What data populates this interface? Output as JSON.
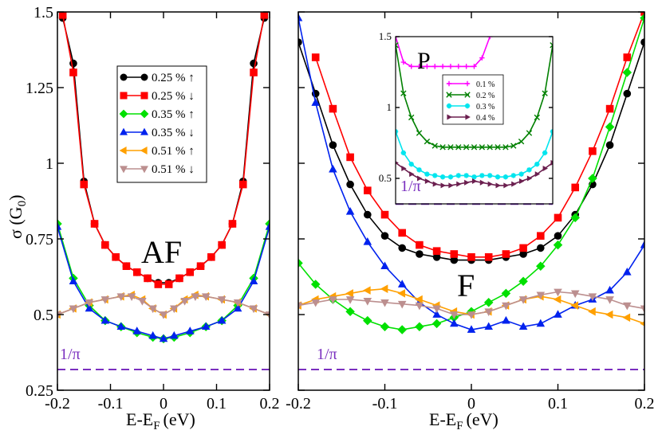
{
  "chart_data": [
    {
      "id": "af",
      "type": "line",
      "label": "AF",
      "xlabel": "E-E",
      "xlabel_sub": "F",
      "xlabel_unit": "(eV)",
      "ylabel": "σ (G",
      "ylabel_sub": "0",
      "ylabel_close": ")",
      "xlim": [
        -0.2,
        0.2
      ],
      "ylim": [
        0.25,
        1.5
      ],
      "xticks": [
        -0.2,
        -0.1,
        0,
        0.1,
        0.2
      ],
      "xtick_labels": [
        "-0.2",
        "-0.1",
        "0",
        "0.1",
        "0.2"
      ],
      "yticks": [
        0.25,
        0.5,
        0.75,
        1,
        1.25,
        1.5
      ],
      "ytick_labels": [
        "0.25",
        "0.5",
        "0.75",
        "1",
        "1.25",
        "1.5"
      ],
      "reference_line": {
        "label": "1/π",
        "value": 0.3183,
        "color": "#7a2fbf"
      },
      "legend": {
        "position": "top-center"
      },
      "series": [
        {
          "name": "0.25 % ↑",
          "color": "#000000",
          "marker": "circle",
          "x": [
            -0.19,
            -0.17,
            -0.15,
            -0.13,
            -0.11,
            -0.09,
            -0.07,
            -0.05,
            -0.03,
            -0.01,
            0.01,
            0.03,
            0.05,
            0.07,
            0.09,
            0.11,
            0.13,
            0.15,
            0.17,
            0.19
          ],
          "y": [
            1.48,
            1.33,
            0.94,
            0.8,
            0.73,
            0.69,
            0.66,
            0.64,
            0.62,
            0.605,
            0.605,
            0.62,
            0.64,
            0.66,
            0.69,
            0.73,
            0.8,
            0.94,
            1.33,
            1.48
          ]
        },
        {
          "name": "0.25 % ↓",
          "color": "#ff0000",
          "marker": "square",
          "x": [
            -0.19,
            -0.17,
            -0.15,
            -0.13,
            -0.11,
            -0.09,
            -0.07,
            -0.05,
            -0.03,
            -0.01,
            0.01,
            0.03,
            0.05,
            0.07,
            0.09,
            0.11,
            0.13,
            0.15,
            0.17,
            0.19
          ],
          "y": [
            1.49,
            1.3,
            0.93,
            0.8,
            0.73,
            0.69,
            0.66,
            0.64,
            0.62,
            0.6,
            0.6,
            0.62,
            0.64,
            0.66,
            0.69,
            0.73,
            0.8,
            0.93,
            1.3,
            1.49
          ]
        },
        {
          "name": "0.35 % ↑",
          "color": "#00e000",
          "marker": "diamond",
          "x": [
            -0.2,
            -0.17,
            -0.14,
            -0.11,
            -0.08,
            -0.05,
            -0.02,
            0.0,
            0.02,
            0.05,
            0.08,
            0.11,
            0.14,
            0.17,
            0.2
          ],
          "y": [
            0.8,
            0.62,
            0.53,
            0.48,
            0.46,
            0.44,
            0.425,
            0.42,
            0.425,
            0.44,
            0.46,
            0.48,
            0.53,
            0.62,
            0.8
          ]
        },
        {
          "name": "0.35 % ↓",
          "color": "#0022ee",
          "marker": "triangle-up",
          "x": [
            -0.2,
            -0.17,
            -0.14,
            -0.11,
            -0.08,
            -0.05,
            -0.02,
            0.0,
            0.02,
            0.05,
            0.08,
            0.11,
            0.14,
            0.17,
            0.2
          ],
          "y": [
            0.79,
            0.61,
            0.52,
            0.48,
            0.46,
            0.445,
            0.43,
            0.42,
            0.43,
            0.445,
            0.46,
            0.48,
            0.52,
            0.61,
            0.79
          ]
        },
        {
          "name": "0.51 % ↑",
          "color": "#ffa000",
          "marker": "triangle-left",
          "x": [
            -0.2,
            -0.17,
            -0.14,
            -0.11,
            -0.08,
            -0.06,
            -0.04,
            -0.02,
            0.0,
            0.02,
            0.04,
            0.06,
            0.08,
            0.11,
            0.14,
            0.17,
            0.2
          ],
          "y": [
            0.5,
            0.52,
            0.54,
            0.55,
            0.56,
            0.565,
            0.55,
            0.52,
            0.5,
            0.52,
            0.55,
            0.565,
            0.56,
            0.55,
            0.54,
            0.52,
            0.5
          ]
        },
        {
          "name": "0.51 % ↓",
          "color": "#bc8f8f",
          "marker": "triangle-down",
          "x": [
            -0.2,
            -0.17,
            -0.14,
            -0.11,
            -0.08,
            -0.06,
            -0.04,
            -0.02,
            0.0,
            0.02,
            0.04,
            0.06,
            0.08,
            0.11,
            0.14,
            0.17,
            0.2
          ],
          "y": [
            0.5,
            0.52,
            0.54,
            0.55,
            0.56,
            0.56,
            0.545,
            0.52,
            0.5,
            0.52,
            0.545,
            0.56,
            0.56,
            0.55,
            0.54,
            0.52,
            0.5
          ]
        }
      ]
    },
    {
      "id": "f",
      "type": "line",
      "label": "F",
      "xlabel": "E-E",
      "xlabel_sub": "F",
      "xlabel_unit": "(eV)",
      "xlim": [
        -0.2,
        0.2
      ],
      "ylim": [
        0.25,
        1.5
      ],
      "xticks": [
        -0.2,
        -0.1,
        0,
        0.1,
        0.2
      ],
      "xtick_labels": [
        "-0.2",
        "-0.1",
        "0",
        "0.1",
        "0.2"
      ],
      "yticks": [
        0.25,
        0.5,
        0.75,
        1,
        1.25,
        1.5
      ],
      "reference_line": {
        "label": "1/π",
        "value": 0.3183,
        "color": "#7a2fbf"
      },
      "series": [
        {
          "name": "0.25 % ↑",
          "color": "#000000",
          "marker": "circle",
          "x": [
            -0.2,
            -0.18,
            -0.16,
            -0.14,
            -0.12,
            -0.1,
            -0.08,
            -0.06,
            -0.04,
            -0.02,
            0.0,
            0.02,
            0.04,
            0.06,
            0.08,
            0.1,
            0.12,
            0.14,
            0.16,
            0.18,
            0.2
          ],
          "y": [
            1.4,
            1.23,
            1.06,
            0.93,
            0.83,
            0.76,
            0.72,
            0.7,
            0.69,
            0.68,
            0.68,
            0.68,
            0.69,
            0.7,
            0.72,
            0.76,
            0.83,
            0.93,
            1.06,
            1.23,
            1.4
          ]
        },
        {
          "name": "0.25 % ↓",
          "color": "#ff0000",
          "marker": "square",
          "x": [
            -0.18,
            -0.16,
            -0.14,
            -0.12,
            -0.1,
            -0.08,
            -0.06,
            -0.04,
            -0.02,
            0.0,
            0.02,
            0.04,
            0.06,
            0.08,
            0.1,
            0.12,
            0.14,
            0.16,
            0.18,
            0.2
          ],
          "y": [
            1.35,
            1.18,
            1.02,
            0.91,
            0.83,
            0.77,
            0.73,
            0.71,
            0.7,
            0.69,
            0.69,
            0.7,
            0.72,
            0.76,
            0.82,
            0.92,
            1.04,
            1.18,
            1.35,
            1.5
          ]
        },
        {
          "name": "0.35 % ↑",
          "color": "#00e000",
          "marker": "diamond",
          "x": [
            -0.2,
            -0.18,
            -0.16,
            -0.14,
            -0.12,
            -0.1,
            -0.08,
            -0.06,
            -0.04,
            -0.02,
            0.0,
            0.02,
            0.04,
            0.06,
            0.08,
            0.1,
            0.12,
            0.14,
            0.16,
            0.18,
            0.2
          ],
          "y": [
            0.67,
            0.6,
            0.55,
            0.51,
            0.48,
            0.46,
            0.45,
            0.46,
            0.47,
            0.49,
            0.51,
            0.54,
            0.57,
            0.61,
            0.66,
            0.73,
            0.82,
            0.95,
            1.12,
            1.3,
            1.48
          ]
        },
        {
          "name": "0.35 % ↓",
          "color": "#0022ee",
          "marker": "triangle-up",
          "x": [
            -0.2,
            -0.18,
            -0.16,
            -0.14,
            -0.12,
            -0.1,
            -0.08,
            -0.06,
            -0.04,
            -0.02,
            0.0,
            0.02,
            0.04,
            0.06,
            0.08,
            0.1,
            0.12,
            0.14,
            0.16,
            0.18,
            0.2
          ],
          "y": [
            1.48,
            1.2,
            0.98,
            0.84,
            0.74,
            0.66,
            0.6,
            0.54,
            0.5,
            0.47,
            0.45,
            0.46,
            0.48,
            0.46,
            0.47,
            0.5,
            0.53,
            0.55,
            0.58,
            0.64,
            0.73
          ]
        },
        {
          "name": "0.51 % ↑",
          "color": "#ffa000",
          "marker": "triangle-left",
          "x": [
            -0.2,
            -0.18,
            -0.16,
            -0.14,
            -0.12,
            -0.1,
            -0.08,
            -0.06,
            -0.04,
            -0.02,
            0.0,
            0.02,
            0.04,
            0.06,
            0.08,
            0.1,
            0.12,
            0.14,
            0.16,
            0.18,
            0.2
          ],
          "y": [
            0.53,
            0.55,
            0.56,
            0.57,
            0.58,
            0.585,
            0.57,
            0.55,
            0.53,
            0.51,
            0.5,
            0.51,
            0.53,
            0.55,
            0.56,
            0.55,
            0.53,
            0.51,
            0.5,
            0.49,
            0.47
          ]
        },
        {
          "name": "0.51 % ↓",
          "color": "#bc8f8f",
          "marker": "triangle-down",
          "x": [
            -0.2,
            -0.18,
            -0.16,
            -0.14,
            -0.12,
            -0.1,
            -0.08,
            -0.06,
            -0.04,
            -0.02,
            0.0,
            0.02,
            0.04,
            0.06,
            0.08,
            0.1,
            0.12,
            0.14,
            0.16,
            0.18,
            0.2
          ],
          "y": [
            0.53,
            0.54,
            0.55,
            0.55,
            0.545,
            0.54,
            0.535,
            0.53,
            0.52,
            0.5,
            0.5,
            0.51,
            0.53,
            0.55,
            0.565,
            0.575,
            0.57,
            0.56,
            0.55,
            0.53,
            0.52
          ]
        }
      ]
    },
    {
      "id": "p-inset",
      "type": "line",
      "label": "P",
      "xlim": [
        -0.2,
        0.2
      ],
      "ylim": [
        0.32,
        1.5
      ],
      "yticks": [
        0.5,
        1,
        1.5
      ],
      "ytick_labels": [
        "0.5",
        "1",
        "1.5"
      ],
      "reference_line": {
        "label": "1/π",
        "value": 0.3183,
        "color": "#7a2fbf"
      },
      "legend": {
        "position": "center"
      },
      "series": [
        {
          "name": "0.1 %",
          "color": "#ff00ff",
          "marker": "plus",
          "x": [
            -0.2,
            -0.18,
            -0.16,
            -0.14,
            -0.12,
            -0.1,
            -0.08,
            -0.06,
            -0.04,
            -0.02,
            0.0,
            0.02,
            0.04
          ],
          "y": [
            1.5,
            1.32,
            1.29,
            1.29,
            1.29,
            1.29,
            1.29,
            1.29,
            1.29,
            1.29,
            1.29,
            1.35,
            1.5
          ]
        },
        {
          "name": "0.2 %",
          "color": "#008000",
          "marker": "x",
          "x": [
            -0.2,
            -0.18,
            -0.16,
            -0.14,
            -0.12,
            -0.1,
            -0.08,
            -0.06,
            -0.04,
            -0.02,
            0.0,
            0.02,
            0.04,
            0.06,
            0.08,
            0.1,
            0.12,
            0.14,
            0.16,
            0.18,
            0.2
          ],
          "y": [
            1.44,
            1.1,
            0.93,
            0.82,
            0.76,
            0.73,
            0.72,
            0.72,
            0.72,
            0.72,
            0.72,
            0.72,
            0.72,
            0.72,
            0.72,
            0.73,
            0.76,
            0.82,
            0.93,
            1.1,
            1.44
          ]
        },
        {
          "name": "0.3 %",
          "color": "#00e5ee",
          "marker": "asterisk",
          "x": [
            -0.2,
            -0.18,
            -0.16,
            -0.14,
            -0.12,
            -0.1,
            -0.08,
            -0.06,
            -0.04,
            -0.02,
            0.0,
            0.02,
            0.04,
            0.06,
            0.08,
            0.1,
            0.12,
            0.14,
            0.16,
            0.18,
            0.2
          ],
          "y": [
            0.83,
            0.68,
            0.6,
            0.56,
            0.53,
            0.52,
            0.51,
            0.51,
            0.52,
            0.52,
            0.51,
            0.52,
            0.52,
            0.51,
            0.51,
            0.52,
            0.53,
            0.56,
            0.6,
            0.68,
            0.83
          ]
        },
        {
          "name": "0.4 %",
          "color": "#6b1f4f",
          "marker": "triangle-right",
          "x": [
            -0.2,
            -0.18,
            -0.16,
            -0.14,
            -0.12,
            -0.1,
            -0.08,
            -0.06,
            -0.04,
            -0.02,
            0.0,
            0.02,
            0.04,
            0.06,
            0.08,
            0.1,
            0.12,
            0.14,
            0.16,
            0.18,
            0.2
          ],
          "y": [
            0.61,
            0.57,
            0.53,
            0.5,
            0.48,
            0.46,
            0.45,
            0.45,
            0.46,
            0.47,
            0.48,
            0.47,
            0.46,
            0.45,
            0.45,
            0.46,
            0.48,
            0.5,
            0.53,
            0.57,
            0.61
          ]
        }
      ]
    }
  ]
}
